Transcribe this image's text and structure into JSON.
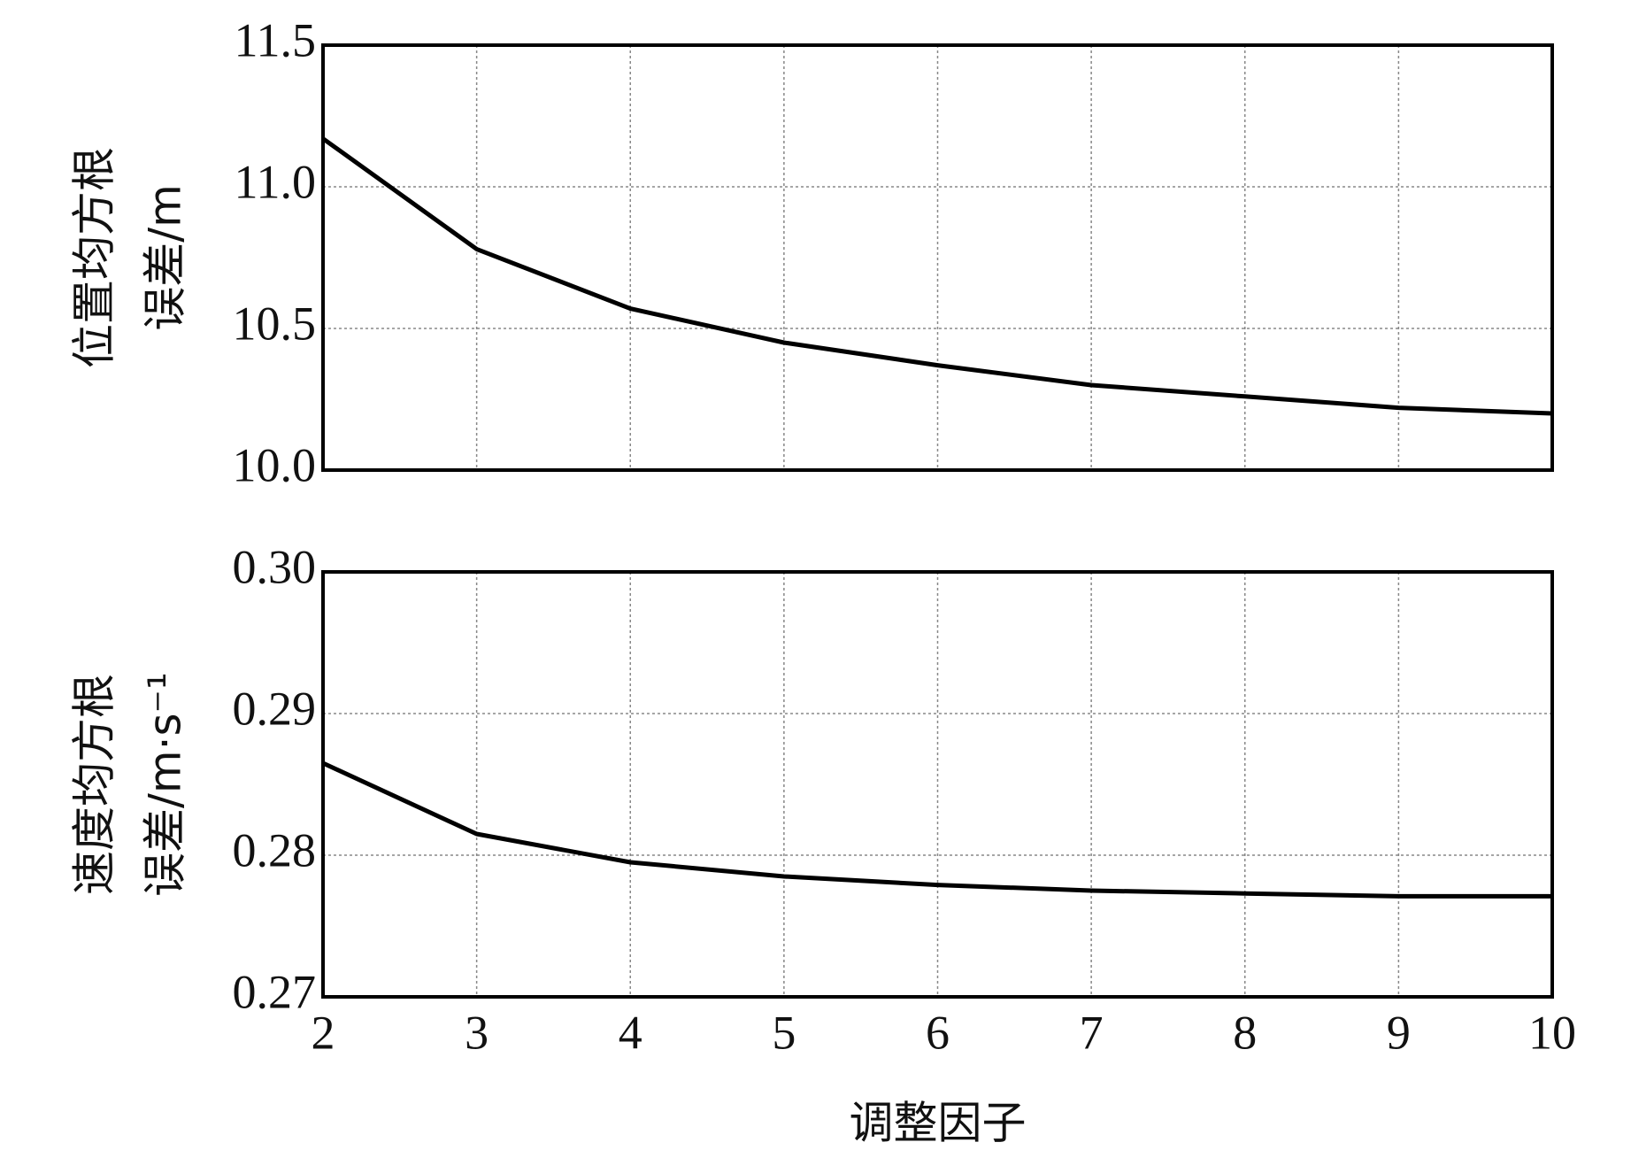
{
  "chart_data": [
    {
      "type": "line",
      "ylabel": [
        "位置均方根",
        "误差/m"
      ],
      "x": [
        2,
        3,
        4,
        5,
        6,
        7,
        8,
        9,
        10
      ],
      "series": [
        {
          "color": "#000000",
          "values": [
            11.17,
            10.78,
            10.57,
            10.45,
            10.37,
            10.3,
            10.26,
            10.22,
            10.2
          ]
        }
      ],
      "xlim": [
        2,
        10
      ],
      "xticks": [
        2,
        3,
        4,
        5,
        6,
        7,
        8,
        9,
        10
      ],
      "ylim": [
        10,
        11.5
      ],
      "yticks": [
        {
          "value": 10,
          "label": "10.0"
        },
        10.5,
        {
          "value": 11,
          "label": "11.0"
        },
        11.5
      ],
      "grid": true
    },
    {
      "type": "line",
      "ylabel": [
        "速度均方根",
        "误差/m·s⁻¹"
      ],
      "xlabel": "调整因子",
      "x": [
        2,
        3,
        4,
        5,
        6,
        7,
        8,
        9,
        10
      ],
      "series": [
        {
          "color": "#000000",
          "values": [
            0.2865,
            0.2815,
            0.2795,
            0.2785,
            0.2779,
            0.2775,
            0.2773,
            0.2771,
            0.2771
          ]
        }
      ],
      "xlim": [
        2,
        10
      ],
      "xticks": [
        2,
        3,
        4,
        5,
        6,
        7,
        8,
        9,
        10
      ],
      "ylim": [
        0.27,
        0.3
      ],
      "yticks": [
        0.27,
        0.28,
        0.29,
        {
          "value": 0.3,
          "label": "0.30"
        }
      ],
      "grid": true,
      "xticklabels": true
    }
  ]
}
